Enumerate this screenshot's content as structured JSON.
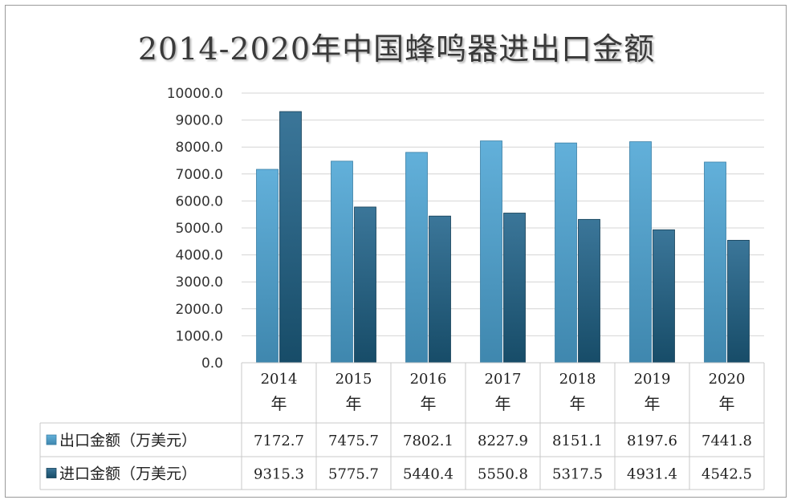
{
  "chart_data": {
    "type": "bar",
    "title": "2014-2020年中国蜂鸣器进出口金额",
    "categories": [
      "2014",
      "2015",
      "2016",
      "2017",
      "2018",
      "2019",
      "2020"
    ],
    "category_suffix": "年",
    "series": [
      {
        "name": "出口金额（万美元）",
        "color": "#5ba7cf",
        "values": [
          7172.7,
          7475.7,
          7802.1,
          8227.9,
          8151.1,
          8197.6,
          7441.8
        ]
      },
      {
        "name": "进口金额（万美元）",
        "color": "#2a6485",
        "values": [
          9315.3,
          5775.7,
          5440.4,
          5550.8,
          5317.5,
          4931.4,
          4542.5
        ]
      }
    ],
    "yticks": [
      "0.0",
      "1000.0",
      "2000.0",
      "3000.0",
      "4000.0",
      "5000.0",
      "6000.0",
      "7000.0",
      "8000.0",
      "9000.0",
      "10000.0"
    ],
    "ylim": [
      0,
      10000
    ],
    "grid": true,
    "legend": "data-table"
  }
}
